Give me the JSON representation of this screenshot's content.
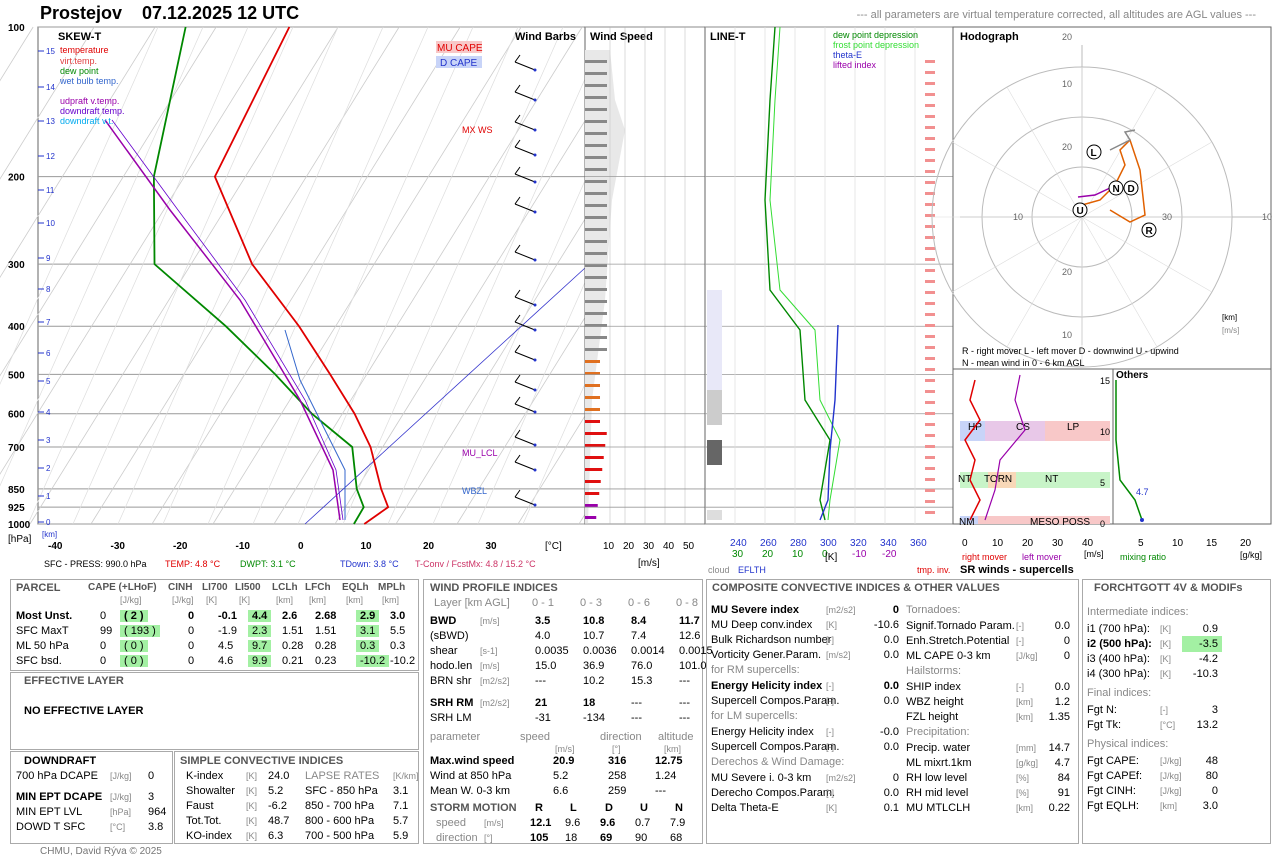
{
  "header": {
    "station": "Prostejov",
    "datetime": "07.12.2025 12 UTC",
    "note": "--- all parameters are virtual temperature corrected, all altitudes are AGL values ---"
  },
  "panels": {
    "skewt": "SKEW-T",
    "barbs": "Wind Barbs",
    "speed": "Wind Speed",
    "line": "LINE-T",
    "hodo": "Hodograph",
    "srwinds": "SR winds - supercells",
    "others": "Others"
  },
  "skewt_legend": [
    "temperature",
    "virt.temp.",
    "dew point",
    "wet bulb temp.",
    "udpraft v.temp.",
    "downdraft temp.",
    "downdraft v.t."
  ],
  "skewt_colors": {
    "temperature": "#e00000",
    "virt": "#e04040",
    "dew": "#008800",
    "wetbulb": "#3366cc",
    "updraft": "#9900aa",
    "downdraft": "#6600cc",
    "downdraftv": "#00aaee"
  },
  "cape_labels": {
    "mu": "MU CAPE",
    "d": "D CAPE"
  },
  "level_labels": {
    "mxws": "MX WS",
    "mulcl": "MU_LCL",
    "wbzl": "WBZL"
  },
  "pressure_ticks": [
    "100",
    "200",
    "300",
    "400",
    "500",
    "600",
    "700",
    "850",
    "925",
    "1000"
  ],
  "height_ticks": [
    "15",
    "14",
    "13",
    "12",
    "11",
    "10",
    "9",
    "8",
    "7",
    "6",
    "5",
    "4",
    "3",
    "2",
    "1",
    "0"
  ],
  "t_ticks": [
    "-40",
    "-30",
    "-20",
    "-10",
    "0",
    "10",
    "20",
    "30"
  ],
  "t_unit": "[°C]",
  "p_unit": "[hPa]",
  "km_unit": "[km]",
  "surface_line": {
    "sfc": "SFC - PRESS: 990.0 hPa",
    "temp": "TEMP: 4.8 °C",
    "dwpt": "DWPT: 3.1 °C",
    "tdown": "TDown: 3.8 °C",
    "tconv": "T-Conv / FcstMx: 4.8 / 15.2 °C"
  },
  "speed_ticks": [
    "10",
    "20",
    "30",
    "40",
    "50"
  ],
  "speed_unit": "[m/s]",
  "line_legend": [
    "dew point depression",
    "frost point depression",
    "theta-E",
    "lifted index"
  ],
  "line_ticks_top": [
    "240",
    "260",
    "280",
    "300",
    "320",
    "340",
    "360"
  ],
  "line_ticks_bot": [
    "30",
    "20",
    "10",
    "0",
    "-10",
    "-20"
  ],
  "line_unit": "[K]",
  "line_bottom": {
    "cloud": "cloud",
    "eflth": "EFLTH",
    "tmpinv": "tmp. inv."
  },
  "hodo_rings": [
    "10",
    "20",
    "10",
    "20",
    "10",
    "30",
    "10",
    "20"
  ],
  "hodo_units": [
    "[km]",
    "[m/s]"
  ],
  "hodo_legend1": "R - right mover        L - left mover         D - downwind       U - upwind",
  "hodo_legend2": "N - mean wind in 0 - 6 km AGL",
  "hodo_points": [
    "L",
    "N",
    "D",
    "U",
    "R"
  ],
  "sr_labels": [
    "HP",
    "CS",
    "LP",
    "NT",
    "TORN",
    "NT",
    "NM",
    "MESO POSS"
  ],
  "sr_ticks_y": [
    "15",
    "10",
    "5",
    "0"
  ],
  "sr_ticks_x": [
    "0",
    "10",
    "20",
    "30",
    "40"
  ],
  "sr_unit": "[m/s]",
  "sr_legend": {
    "right": "right mover",
    "left": "left mover"
  },
  "others_ticks": [
    "5",
    "10",
    "15",
    "20"
  ],
  "others_unit": "[g/kg]",
  "others_value": "4.7",
  "others_legend": "mixing ratio",
  "parcel": {
    "title": "PARCEL",
    "cols": [
      "CAPE (+LHoF)",
      "CINH",
      "LI700",
      "LI500",
      "LCLh",
      "LFCh",
      "EQLh",
      "MPLh"
    ],
    "units": [
      "[J/kg]",
      "[J/kg]",
      "[K]",
      "[K]",
      "[km]",
      "[km]",
      "[km]",
      "[km]"
    ],
    "rows": [
      {
        "name": "Most Unst.",
        "v": [
          "0",
          "( 2 )",
          "0",
          "-0.1",
          "4.4",
          "2.6",
          "2.68",
          "2.9",
          "3.0"
        ]
      },
      {
        "name": "SFC MaxT",
        "v": [
          "99",
          "( 193 )",
          "0",
          "-1.9",
          "2.3",
          "1.51",
          "1.51",
          "3.1",
          "5.5"
        ]
      },
      {
        "name": "ML 50 hPa",
        "v": [
          "0",
          "( 0 )",
          "0",
          "4.5",
          "9.7",
          "0.28",
          "0.28",
          "0.3",
          "0.3"
        ]
      },
      {
        "name": "SFC bsd.",
        "v": [
          "0",
          "( 0 )",
          "0",
          "4.6",
          "9.9",
          "0.21",
          "0.23",
          "-10.2",
          "-10.2"
        ]
      }
    ]
  },
  "effective": {
    "title": "EFFECTIVE LAYER",
    "text": "NO EFFECTIVE LAYER"
  },
  "downdraft": {
    "title": "DOWNDRAFT",
    "rows": [
      {
        "l": "700 hPa DCAPE",
        "u": "[J/kg]",
        "v": "0"
      },
      {
        "l": "MIN EPT DCAPE",
        "u": "[J/kg]",
        "v": "3"
      },
      {
        "l": "MIN EPT LVL",
        "u": "[hPa]",
        "v": "964"
      },
      {
        "l": "DOWD T SFC",
        "u": "[°C]",
        "v": "3.8"
      }
    ]
  },
  "simple": {
    "title": "SIMPLE CONVECTIVE INDICES",
    "lapse": "LAPSE RATES",
    "lapse_unit": "[K/km]",
    "rows": [
      {
        "l": "K-index",
        "u": "[K]",
        "v": "24.0",
        "ll": "SFC - 850 hPa",
        "lv": "3.1"
      },
      {
        "l": "Showalter",
        "u": "[K]",
        "v": "5.2",
        "ll": "850 - 700 hPa",
        "lv": "7.1"
      },
      {
        "l": "Faust",
        "u": "[K]",
        "v": "-6.2",
        "ll": "800 - 600 hPa",
        "lv": "5.7"
      },
      {
        "l": "Tot.Tot.",
        "u": "[K]",
        "v": "48.7",
        "ll": "700 - 500 hPa",
        "lv": "5.9"
      },
      {
        "l": "KO-index",
        "u": "[K]",
        "v": "6.3",
        "ll": "",
        "lv": ""
      }
    ]
  },
  "wind": {
    "title": "WIND PROFILE INDICES",
    "layer": "Layer [km AGL]",
    "cols": [
      "0 - 1",
      "0 - 3",
      "0 - 6",
      "0 - 8"
    ],
    "rows": [
      {
        "l": "BWD",
        "u": "[m/s]",
        "v": [
          "3.5",
          "10.8",
          "8.4",
          "11.7"
        ]
      },
      {
        "l": "(sBWD)",
        "u": "",
        "v": [
          "4.0",
          "10.7",
          "7.4",
          "12.6"
        ]
      },
      {
        "l": "shear",
        "u": "[s-1]",
        "v": [
          "0.0035",
          "0.0036",
          "0.0014",
          "0.0015"
        ]
      },
      {
        "l": "hodo.len",
        "u": "[m/s]",
        "v": [
          "15.0",
          "36.9",
          "76.0",
          "101.0"
        ]
      },
      {
        "l": "BRN shr",
        "u": "[m2/s2]",
        "v": [
          "---",
          "10.2",
          "15.3",
          "---"
        ]
      },
      {
        "l": "SRH RM",
        "u": "[m2/s2]",
        "v": [
          "21",
          "18",
          "---",
          "---"
        ]
      },
      {
        "l": "SRH LM",
        "u": "",
        "v": [
          "-31",
          "-134",
          "---",
          "---"
        ]
      }
    ],
    "param_cols": [
      "parameter",
      "speed",
      "direction",
      "altitude"
    ],
    "param_units": [
      "[m/s]",
      "[°]",
      "[km]"
    ],
    "param_rows": [
      {
        "l": "Max.wind speed",
        "v": [
          "20.9",
          "316",
          "12.75"
        ]
      },
      {
        "l": "Wind at 850 hPa",
        "v": [
          "5.2",
          "258",
          "1.24"
        ]
      },
      {
        "l": "Mean W. 0-3 km",
        "v": [
          "6.6",
          "259",
          "---"
        ]
      }
    ],
    "storm_title": "STORM MOTION",
    "storm_cols": [
      "R",
      "L",
      "D",
      "U",
      "N"
    ],
    "storm_rows": [
      {
        "l": "speed",
        "u": "[m/s]",
        "v": [
          "12.1",
          "9.6",
          "9.6",
          "0.7",
          "7.9"
        ]
      },
      {
        "l": "direction",
        "u": "[°]",
        "v": [
          "105",
          "18",
          "69",
          "90",
          "68"
        ]
      }
    ]
  },
  "composite": {
    "title": "COMPOSITE CONVECTIVE INDICES & OTHER VALUES",
    "left": [
      {
        "l": "MU Severe index",
        "u": "[m2/s2]",
        "v": "0",
        "b": true
      },
      {
        "l": "MU Deep conv.index",
        "u": "[K]",
        "v": "-10.6"
      },
      {
        "l": "Bulk Richardson number",
        "u": "[-]",
        "v": "0.0"
      },
      {
        "l": "Vorticity Gener.Param.",
        "u": "[m/s2]",
        "v": "0.0"
      },
      {
        "h": "for RM supercells:"
      },
      {
        "l": "Energy Helicity index",
        "u": "[-]",
        "v": "0.0",
        "b": true
      },
      {
        "l": "Supercell Compos.Param.",
        "u": "[-]",
        "v": "0.0"
      },
      {
        "h": "for LM supercells:"
      },
      {
        "l": "Energy Helicity index",
        "u": "[-]",
        "v": "-0.0"
      },
      {
        "l": "Supercell Compos.Param.",
        "u": "[-]",
        "v": "0.0"
      },
      {
        "h": "Derechos & Wind Damage:"
      },
      {
        "l": "MU Severe i. 0-3 km",
        "u": "[m2/s2]",
        "v": "0"
      },
      {
        "l": "Derecho Compos.Param.",
        "u": "[-]",
        "v": "0.0"
      },
      {
        "l": "Delta Theta-E",
        "u": "[K]",
        "v": "0.1"
      }
    ],
    "right": [
      {
        "h": "Tornadoes:"
      },
      {
        "l": "Signif.Tornado Param.",
        "u": "[-]",
        "v": "0.0"
      },
      {
        "l": "Enh.Stretch.Potential",
        "u": "[-]",
        "v": "0"
      },
      {
        "l": "ML CAPE 0-3 km",
        "u": "[J/kg]",
        "v": "0"
      },
      {
        "h": "Hailstorms:"
      },
      {
        "l": "SHIP index",
        "u": "[-]",
        "v": "0.0"
      },
      {
        "l": "WBZ height",
        "u": "[km]",
        "v": "1.2"
      },
      {
        "l": "FZL height",
        "u": "[km]",
        "v": "1.35"
      },
      {
        "h": "Precipitation:"
      },
      {
        "l": "Precip. water",
        "u": "[mm]",
        "v": "14.7"
      },
      {
        "l": "ML mixrt.1km",
        "u": "[g/kg]",
        "v": "4.7"
      },
      {
        "l": "RH low level",
        "u": "[%]",
        "v": "84"
      },
      {
        "l": "RH mid level",
        "u": "[%]",
        "v": "91"
      },
      {
        "l": "MU MTLCLH",
        "u": "[km]",
        "v": "0.22"
      }
    ]
  },
  "forchtgott": {
    "title": "FORCHTGOTT 4V & MODIFs",
    "rows": [
      {
        "h": "Intermediate indices:"
      },
      {
        "l": "i1 (700 hPa):",
        "u": "[K]",
        "v": "0.9"
      },
      {
        "l": "i2 (500 hPa):",
        "u": "[K]",
        "v": "-3.5",
        "b": true,
        "g": true
      },
      {
        "l": "i3 (400 hPa):",
        "u": "[K]",
        "v": "-4.2"
      },
      {
        "l": "i4 (300 hPa):",
        "u": "[K]",
        "v": "-10.3"
      },
      {
        "h": "Final indices:"
      },
      {
        "l": "Fgt N:",
        "u": "[-]",
        "v": "3"
      },
      {
        "l": "Fgt Tk:",
        "u": "[°C]",
        "v": "13.2"
      },
      {
        "h": "Physical indices:"
      },
      {
        "l": "Fgt CAPE:",
        "u": "[J/kg]",
        "v": "48"
      },
      {
        "l": "Fgt CAPEf:",
        "u": "[J/kg]",
        "v": "80"
      },
      {
        "l": "Fgt CINH:",
        "u": "[J/kg]",
        "v": "0"
      },
      {
        "l": "Fgt EQLH:",
        "u": "[km]",
        "v": "3.0"
      }
    ]
  },
  "footer": "CHMU, David Rýva © 2025",
  "chart_data": {
    "type": "line",
    "title": "SKEW-T",
    "pressure_levels": [
      1000,
      925,
      850,
      700,
      600,
      500,
      400,
      300,
      200,
      100
    ],
    "temperature": [
      4.8,
      7,
      4,
      -2,
      -8,
      -16,
      -26,
      -40,
      -55,
      -58
    ],
    "dewpoint": [
      3.1,
      3,
      0,
      -5,
      -15,
      -25,
      -38,
      -56,
      -65,
      -75
    ],
    "wind_speed": [
      3,
      5,
      6,
      9,
      10,
      12,
      14,
      16,
      19,
      15
    ],
    "xlabel": "[°C]",
    "ylabel": "[hPa]",
    "xlim": [
      -40,
      35
    ],
    "ylim": [
      1000,
      100
    ]
  }
}
